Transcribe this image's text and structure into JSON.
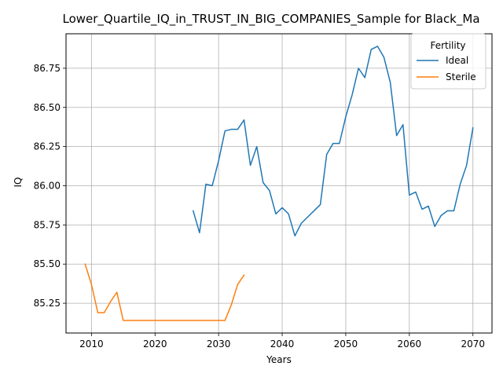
{
  "chart_data": {
    "type": "line",
    "title": "Lower_Quartile_IQ_in_TRUST_IN_BIG_COMPANIES_Sample for Black_Ma",
    "xlabel": "Years",
    "ylabel": "IQ",
    "xlim": [
      2006,
      2073
    ],
    "ylim": [
      85.06,
      86.97
    ],
    "xticks": [
      2010,
      2020,
      2030,
      2040,
      2050,
      2060,
      2070
    ],
    "yticks": [
      85.25,
      85.5,
      85.75,
      86.0,
      86.25,
      86.5,
      86.75
    ],
    "ytick_labels": [
      "85.25",
      "85.50",
      "85.75",
      "86.00",
      "86.25",
      "86.50",
      "86.75"
    ],
    "grid": true,
    "legend": {
      "title": "Fertility",
      "placement": "top-right"
    },
    "series": [
      {
        "name": "Ideal",
        "color": "#1f77b4",
        "points": [
          [
            2026,
            85.84
          ],
          [
            2027,
            85.7
          ],
          [
            2028,
            86.01
          ],
          [
            2029,
            86.0
          ],
          [
            2030,
            86.16
          ],
          [
            2031,
            86.35
          ],
          [
            2032,
            86.36
          ],
          [
            2033,
            86.36
          ],
          [
            2034,
            86.42
          ],
          [
            2035,
            86.13
          ],
          [
            2036,
            86.25
          ],
          [
            2037,
            86.02
          ],
          [
            2038,
            85.97
          ],
          [
            2039,
            85.82
          ],
          [
            2040,
            85.86
          ],
          [
            2041,
            85.82
          ],
          [
            2042,
            85.68
          ],
          [
            2043,
            85.76
          ],
          [
            2044,
            85.8
          ],
          [
            2045,
            85.84
          ],
          [
            2046,
            85.88
          ],
          [
            2047,
            86.2
          ],
          [
            2048,
            86.27
          ],
          [
            2049,
            86.27
          ],
          [
            2050,
            86.44
          ],
          [
            2051,
            86.58
          ],
          [
            2052,
            86.75
          ],
          [
            2053,
            86.69
          ],
          [
            2054,
            86.87
          ],
          [
            2055,
            86.89
          ],
          [
            2056,
            86.82
          ],
          [
            2057,
            86.66
          ],
          [
            2058,
            86.32
          ],
          [
            2059,
            86.39
          ],
          [
            2060,
            85.94
          ],
          [
            2061,
            85.96
          ],
          [
            2062,
            85.85
          ],
          [
            2063,
            85.87
          ],
          [
            2064,
            85.74
          ],
          [
            2065,
            85.81
          ],
          [
            2066,
            85.84
          ],
          [
            2067,
            85.84
          ],
          [
            2068,
            86.01
          ],
          [
            2069,
            86.13
          ],
          [
            2070,
            86.37
          ]
        ]
      },
      {
        "name": "Sterile",
        "color": "#ff7f0e",
        "points": [
          [
            2009,
            85.5
          ],
          [
            2010,
            85.37
          ],
          [
            2011,
            85.19
          ],
          [
            2012,
            85.19
          ],
          [
            2013,
            85.26
          ],
          [
            2014,
            85.32
          ],
          [
            2015,
            85.14
          ],
          [
            2016,
            85.14
          ],
          [
            2017,
            85.14
          ],
          [
            2018,
            85.14
          ],
          [
            2019,
            85.14
          ],
          [
            2020,
            85.14
          ],
          [
            2021,
            85.14
          ],
          [
            2022,
            85.14
          ],
          [
            2023,
            85.14
          ],
          [
            2024,
            85.14
          ],
          [
            2025,
            85.14
          ],
          [
            2026,
            85.14
          ],
          [
            2027,
            85.14
          ],
          [
            2028,
            85.14
          ],
          [
            2029,
            85.14
          ],
          [
            2030,
            85.14
          ],
          [
            2031,
            85.14
          ],
          [
            2032,
            85.24
          ],
          [
            2033,
            85.37
          ],
          [
            2034,
            85.43
          ]
        ]
      }
    ]
  }
}
